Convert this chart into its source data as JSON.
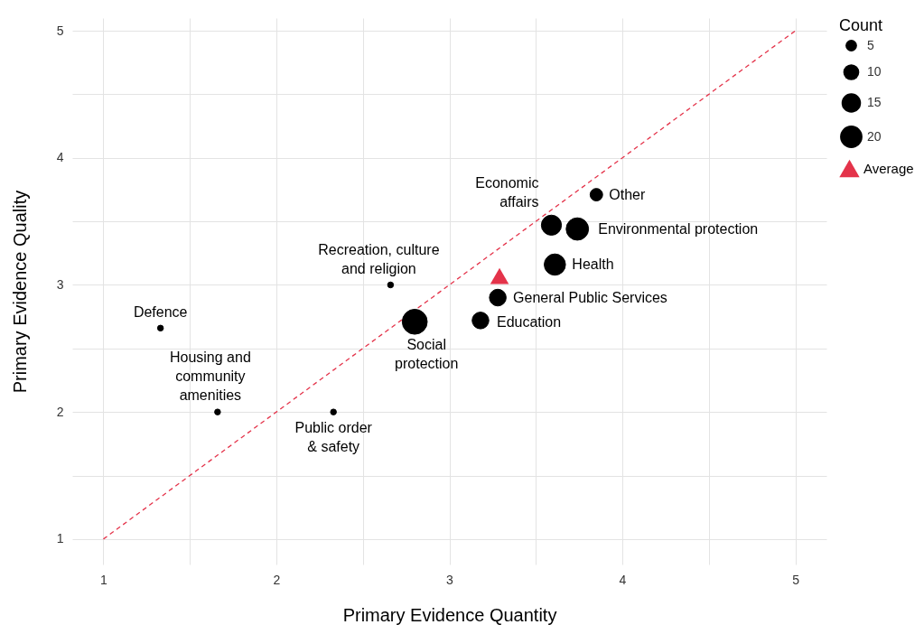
{
  "chart_data": {
    "type": "bubble",
    "xlabel": "Primary Evidence Quantity",
    "ylabel": "Primary Evidence Quality",
    "legend_title": "Count",
    "legend": "right",
    "grid": true,
    "xlim": [
      0.82,
      5.18
    ],
    "ylim": [
      0.8,
      5.1
    ],
    "xticks": [
      1,
      {
        "value": 1.5,
        "label": null
      },
      2,
      {
        "value": 2.5,
        "label": null
      },
      3,
      {
        "value": 3.5,
        "label": null
      },
      4,
      {
        "value": 4.5,
        "label": null
      },
      5
    ],
    "yticks": [
      1,
      {
        "value": 1.5,
        "label": null
      },
      2,
      {
        "value": 2.5,
        "label": null
      },
      3,
      {
        "value": 3.5,
        "label": null
      },
      4,
      {
        "value": 4.5,
        "label": null
      },
      5
    ],
    "size_legend": [
      5,
      10,
      15,
      20
    ],
    "series": [
      {
        "color": "#000000",
        "x": [
          1.33,
          1.66,
          2.33,
          2.66,
          2.8,
          3.18,
          3.28,
          3.61,
          3.59,
          3.74,
          3.85
        ],
        "values": [
          2.66,
          2.0,
          2.0,
          3.0,
          2.71,
          2.72,
          2.9,
          3.16,
          3.47,
          3.44,
          3.71
        ],
        "sizes": [
          1,
          1,
          1,
          1,
          25,
          11,
          11,
          18,
          16,
          20,
          6
        ]
      },
      {
        "type": "scatter",
        "name": "Average",
        "color": "#e4334a",
        "marker": "triangle",
        "x": [
          3.29
        ],
        "values": [
          3.07
        ]
      },
      {
        "type": "line",
        "color": "#e4334a",
        "line_style": "dashed",
        "x": [
          1,
          5
        ],
        "values": [
          1,
          5
        ]
      }
    ],
    "annotations": [
      {
        "text": "Defence",
        "x": 1.33,
        "y": 2.66
      },
      {
        "text": "Housing and\ncommunity\namenities",
        "x": 1.66,
        "y": 2.0
      },
      {
        "text": "Public order\n& safety",
        "x": 2.33,
        "y": 2.0
      },
      {
        "text": "Recreation, culture\nand religion",
        "x": 2.66,
        "y": 3.0
      },
      {
        "text": "Social\nprotection",
        "x": 2.8,
        "y": 2.71
      },
      {
        "text": "Education",
        "x": 3.18,
        "y": 2.72
      },
      {
        "text": "General Public Services",
        "x": 3.28,
        "y": 2.9
      },
      {
        "text": "Health",
        "x": 3.61,
        "y": 3.16
      },
      {
        "text": "Economic\naffairs",
        "x": 3.59,
        "y": 3.47
      },
      {
        "text": "Environmental protection",
        "x": 3.74,
        "y": 3.44
      },
      {
        "text": "Other",
        "x": 3.85,
        "y": 3.71
      }
    ]
  }
}
